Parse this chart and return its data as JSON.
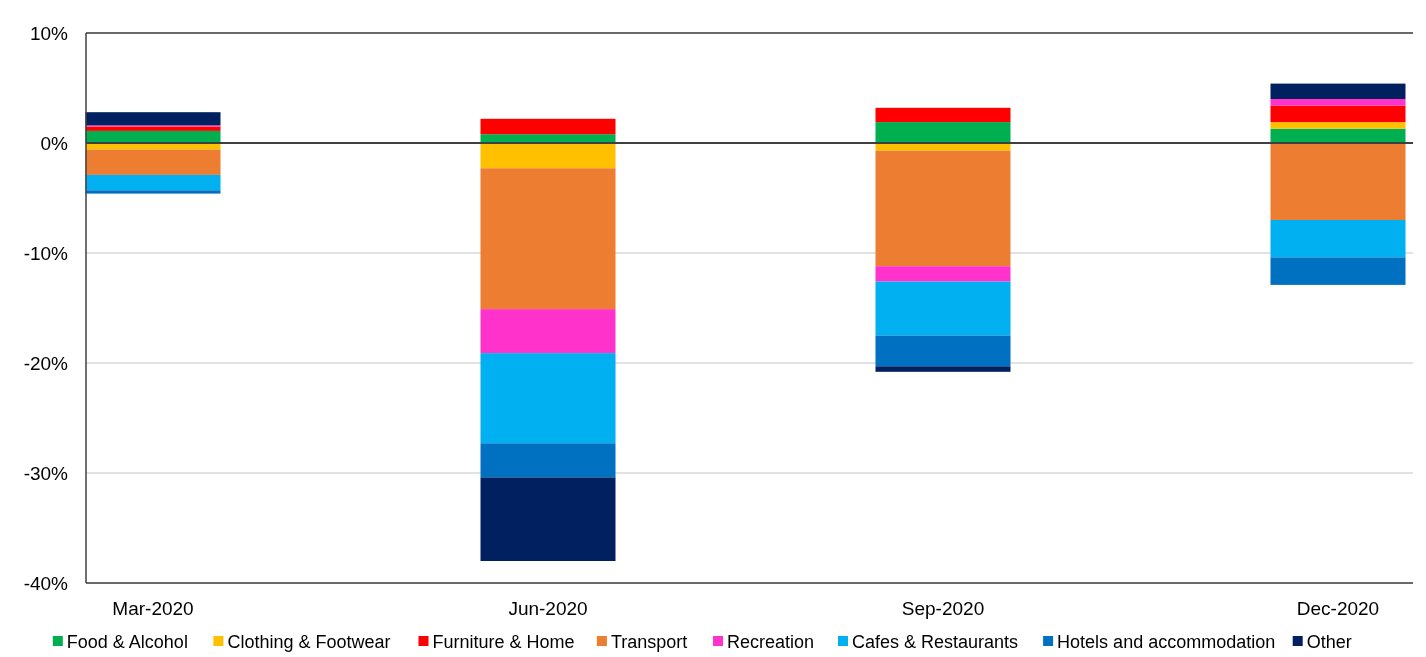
{
  "chart_data": {
    "type": "bar",
    "stacked": true,
    "categories": [
      "Mar-2020",
      "Jun-2020",
      "Sep-2020",
      "Dec-2020"
    ],
    "series": [
      {
        "name": "Food & Alcohol",
        "color": "#00b050",
        "values": [
          1.1,
          0.8,
          1.9,
          1.3
        ]
      },
      {
        "name": "Clothing & Footwear",
        "color": "#ffc000",
        "values": [
          -0.6,
          -2.3,
          -0.7,
          0.6
        ]
      },
      {
        "name": "Furniture & Home",
        "color": "#ff0000",
        "values": [
          0.4,
          1.4,
          1.3,
          1.5
        ]
      },
      {
        "name": "Transport",
        "color": "#ed7d31",
        "values": [
          -2.3,
          -12.8,
          -10.5,
          -7.0
        ]
      },
      {
        "name": "Recreation",
        "color": "#ff33cc",
        "values": [
          0.1,
          -4.0,
          -1.4,
          0.6
        ]
      },
      {
        "name": "Cafes & Restaurants",
        "color": "#00b0f0",
        "values": [
          -1.4,
          -8.2,
          -4.9,
          -3.4
        ]
      },
      {
        "name": "Hotels and accommodation",
        "color": "#0070c0",
        "values": [
          -0.3,
          -3.1,
          -2.8,
          -2.5
        ]
      },
      {
        "name": "Other",
        "color": "#002060",
        "values": [
          1.2,
          -7.6,
          -0.5,
          1.4
        ]
      }
    ],
    "ylim": [
      -40,
      10
    ],
    "yticks": [
      {
        "value": -40,
        "label": "-40%"
      },
      {
        "value": -30,
        "label": "-30%"
      },
      {
        "value": -20,
        "label": "-20%"
      },
      {
        "value": -10,
        "label": "-10%"
      },
      {
        "value": 0,
        "label": "0%"
      },
      {
        "value": 10,
        "label": "10%"
      }
    ],
    "grid": "y",
    "legend": "bottom"
  }
}
